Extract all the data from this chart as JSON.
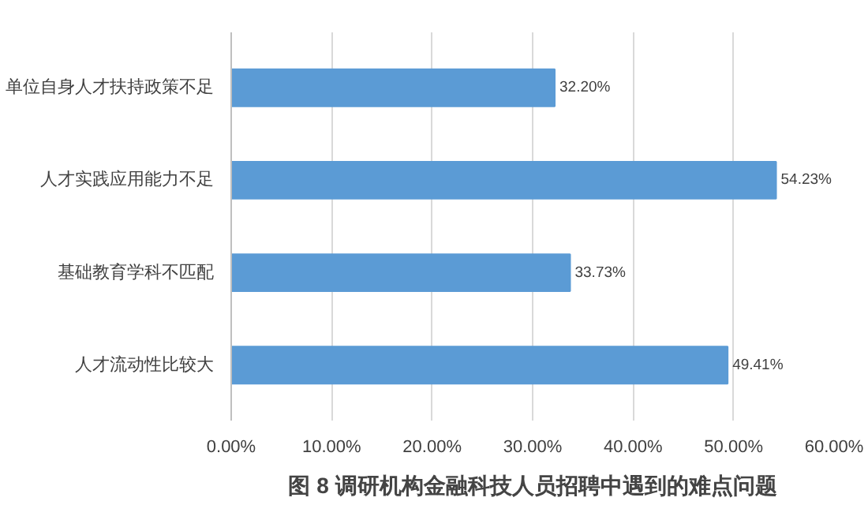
{
  "chart_data": {
    "type": "bar",
    "orientation": "horizontal",
    "title": "图 8 调研机构金融科技人员招聘中遇到的难点问题",
    "categories": [
      "单位自身人才扶持政策不足",
      "人才实践应用能力不足",
      "基础教育学科不匹配",
      "人才流动性比较大"
    ],
    "values": [
      32.2,
      54.23,
      33.73,
      49.41
    ],
    "value_labels": [
      "32.20%",
      "54.23%",
      "33.73%",
      "49.41%"
    ],
    "color": "#5b9bd5",
    "xlim": [
      0,
      60
    ],
    "xticks": [
      {
        "value": 0,
        "label": "0.00%"
      },
      {
        "value": 10,
        "label": "10.00%"
      },
      {
        "value": 20,
        "label": "20.00%"
      },
      {
        "value": 30,
        "label": "30.00%"
      },
      {
        "value": 40,
        "label": "40.00%"
      },
      {
        "value": 50,
        "label": "50.00%"
      },
      {
        "value": 60,
        "label": "60.00%"
      }
    ],
    "grid": "x"
  }
}
